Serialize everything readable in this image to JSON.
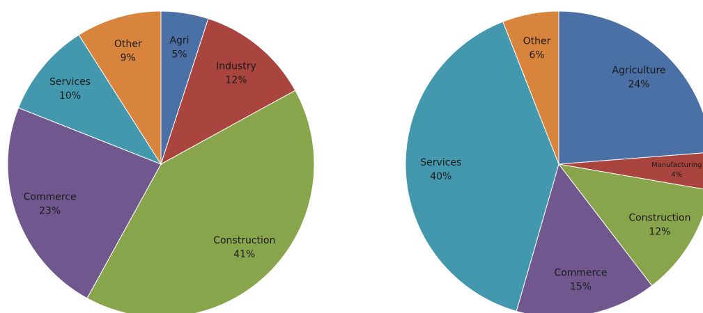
{
  "chart_data": [
    {
      "type": "pie",
      "categories": [
        "Agri",
        "Industry",
        "Construction",
        "Commerce",
        "Services",
        "Other"
      ],
      "values": [
        5,
        12,
        41,
        23,
        10,
        9
      ],
      "value_labels": [
        "5%",
        "12%",
        "41%",
        "23%",
        "10%",
        "9%"
      ],
      "colors": [
        "#4a70a6",
        "#a9443f",
        "#89a54c",
        "#70578e",
        "#4398ae",
        "#d9843c"
      ]
    },
    {
      "type": "pie",
      "categories": [
        "Agriculture",
        "Manufacturing",
        "Construction",
        "Commerce",
        "Services",
        "Other"
      ],
      "values": [
        24,
        4,
        12,
        15,
        40,
        6
      ],
      "value_labels": [
        "24%",
        "4%",
        "12%",
        "15%",
        "40%",
        "6%"
      ],
      "colors": [
        "#4a70a6",
        "#a9443f",
        "#89a54c",
        "#70578e",
        "#4398ae",
        "#d9843c"
      ]
    }
  ]
}
